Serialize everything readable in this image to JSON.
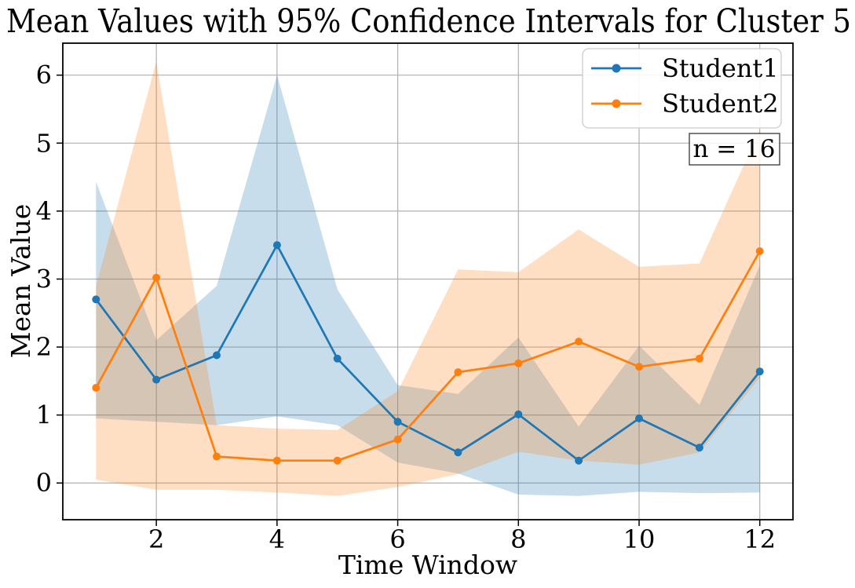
{
  "title": "Mean Values with 95% Confidence Intervals for Cluster 5",
  "annotation": "n = 16",
  "colors": {
    "series1": "#1f77b4",
    "series2": "#ff7f0e",
    "grid": "#b0b0b0",
    "spine": "#000000",
    "legend_border": "#cccccc",
    "annotation_border": "#444444",
    "background": "#ffffff"
  },
  "chart_data": {
    "type": "line",
    "title": "Mean Values with 95% Confidence Intervals for Cluster 5",
    "xlabel": "Time Window",
    "ylabel": "Mean Value",
    "x": [
      1,
      2,
      3,
      4,
      5,
      6,
      7,
      8,
      9,
      10,
      11,
      12
    ],
    "xticks": [
      2,
      4,
      6,
      8,
      10,
      12
    ],
    "yticks": [
      0,
      1,
      2,
      3,
      4,
      5,
      6
    ],
    "xlim": [
      0.45,
      12.55
    ],
    "ylim": [
      -0.54,
      6.47
    ],
    "grid": true,
    "legend_position": "upper right",
    "annotation": "n = 16",
    "band_opacity": 0.25,
    "series": [
      {
        "name": "Student1",
        "color": "#1f77b4",
        "mean": [
          2.7,
          1.52,
          1.88,
          3.5,
          1.83,
          0.9,
          0.45,
          1.01,
          0.33,
          0.95,
          0.52,
          1.64
        ],
        "ci_low": [
          0.95,
          0.9,
          0.85,
          0.98,
          0.85,
          0.3,
          0.14,
          -0.17,
          -0.19,
          -0.13,
          -0.15,
          -0.14
        ],
        "ci_high": [
          4.43,
          2.1,
          2.9,
          6.0,
          2.85,
          1.44,
          1.31,
          2.14,
          0.83,
          2.02,
          1.15,
          3.2
        ]
      },
      {
        "name": "Student2",
        "color": "#ff7f0e",
        "mean": [
          1.4,
          3.02,
          0.39,
          0.33,
          0.33,
          0.64,
          1.63,
          1.76,
          2.08,
          1.71,
          1.83,
          3.41
        ],
        "ci_low": [
          0.05,
          -0.1,
          -0.1,
          -0.14,
          -0.19,
          -0.06,
          0.13,
          0.46,
          0.33,
          0.27,
          0.45,
          1.55
        ],
        "ci_high": [
          2.9,
          6.2,
          0.85,
          0.8,
          0.78,
          1.35,
          3.14,
          3.1,
          3.73,
          3.18,
          3.23,
          5.2
        ]
      }
    ]
  }
}
